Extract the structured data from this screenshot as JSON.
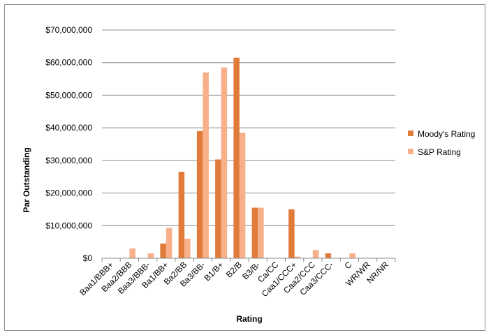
{
  "chart_data": {
    "type": "bar",
    "xlabel": "Rating",
    "ylabel": "Par Outstanding",
    "ylim": [
      0,
      70000000
    ],
    "y_ticks": [
      "$0",
      "$10,000,000",
      "$20,000,000",
      "$30,000,000",
      "$40,000,000",
      "$50,000,000",
      "$60,000,000",
      "$70,000,000"
    ],
    "categories": [
      "Baa1/BBB+",
      "Baa2/BBB",
      "Baa3/BBB-",
      "Ba1/BB+",
      "Ba2/BB",
      "Ba3/BB-",
      "B1/B+",
      "B2/B",
      "B3/B-",
      "Ca/CC",
      "Caa1/CCC+",
      "Caa2/CCC",
      "Caa3/CCC-",
      "C",
      "WR/WR",
      "NR/NR"
    ],
    "series": [
      {
        "name": "Moody's Rating",
        "color": "#e07b39",
        "values": [
          0,
          0,
          0,
          4500000,
          26500000,
          39000000,
          30300000,
          61500000,
          15500000,
          0,
          15000000,
          0,
          1500000,
          0,
          0,
          0
        ]
      },
      {
        "name": "S&P Rating",
        "color": "#f7b08a",
        "values": [
          0,
          3000000,
          1500000,
          9300000,
          6000000,
          57000000,
          58500000,
          38500000,
          15500000,
          0,
          500000,
          2500000,
          0,
          1500000,
          0,
          0
        ]
      }
    ],
    "legend_position": "right",
    "grid": true
  }
}
